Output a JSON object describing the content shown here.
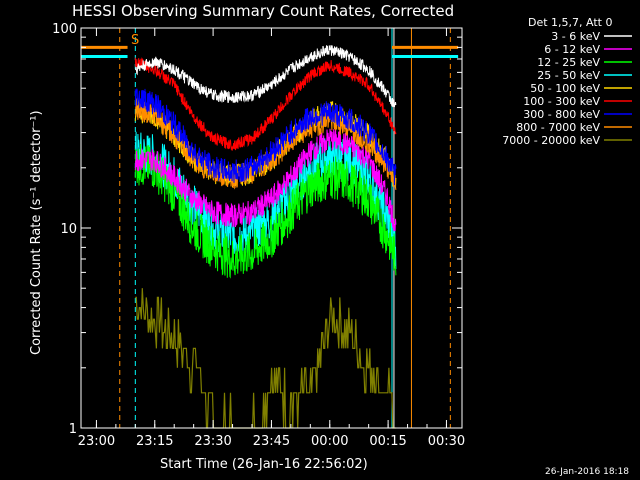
{
  "chart_data": {
    "type": "line",
    "title": "HESSI Observing Summary Count Rates, Corrected",
    "xlabel": "Start Time (26-Jan-16 22:56:02)",
    "ylabel": "Corrected Count Rate (s⁻¹ detector⁻¹)",
    "yscale": "log",
    "ylim": [
      1,
      100
    ],
    "xlim": [
      "22:56:02",
      "00:34:00"
    ],
    "x_ticks": [
      "23:00",
      "23:15",
      "23:30",
      "23:45",
      "00:00",
      "00:15",
      "00:30"
    ],
    "y_ticks": [
      "1",
      "10",
      "100"
    ],
    "legend_title": "Det 1,5,7, Att 0",
    "footer_date": "26-Jan-2016 18:18",
    "marker_label": "S",
    "series": [
      {
        "name": "3 - 6 keV",
        "color": "#ffffff",
        "x": [
          "23:10",
          "23:15",
          "23:20",
          "23:25",
          "23:30",
          "23:35",
          "23:40",
          "23:45",
          "23:50",
          "23:55",
          "00:00",
          "00:05",
          "00:10",
          "00:15",
          "00:17"
        ],
        "values": [
          62,
          68,
          62,
          52,
          46,
          45,
          46,
          52,
          62,
          72,
          78,
          72,
          62,
          46,
          40
        ]
      },
      {
        "name": "6 - 12 keV",
        "color": "#ff00ff",
        "x": [
          "23:10",
          "23:15",
          "23:20",
          "23:25",
          "23:30",
          "23:35",
          "23:40",
          "23:45",
          "23:50",
          "23:55",
          "00:00",
          "00:05",
          "00:10",
          "00:15",
          "00:17"
        ],
        "values": [
          22,
          22,
          18,
          14,
          12,
          11.5,
          12,
          14,
          18,
          24,
          28,
          26,
          22,
          14,
          10
        ]
      },
      {
        "name": "12 - 25 keV",
        "color": "#00ff00",
        "x": [
          "23:10",
          "23:15",
          "23:20",
          "23:25",
          "23:30",
          "23:35",
          "23:40",
          "23:45",
          "23:50",
          "23:55",
          "00:00",
          "00:05",
          "00:10",
          "00:15",
          "00:17"
        ],
        "values": [
          21,
          20,
          15,
          10,
          8,
          7,
          7.5,
          9,
          12,
          16,
          18,
          17,
          14,
          9,
          7
        ]
      },
      {
        "name": "25 - 50 keV",
        "color": "#00ffff",
        "x": [
          "23:10",
          "23:15",
          "23:20",
          "23:25",
          "23:30",
          "23:35",
          "23:40",
          "23:45",
          "23:50",
          "23:55",
          "00:00",
          "00:05",
          "00:10",
          "00:15",
          "00:17"
        ],
        "values": [
          24,
          23,
          18,
          13,
          10,
          9,
          9.5,
          11,
          15,
          20,
          23,
          22,
          18,
          11,
          8
        ]
      },
      {
        "name": "50 - 100 keV",
        "color": "#ffd700",
        "x": [
          "23:10",
          "23:15",
          "23:20",
          "23:25",
          "23:30",
          "23:35",
          "23:40",
          "23:45",
          "23:50",
          "23:55",
          "00:00",
          "00:05",
          "00:10",
          "00:15",
          "00:17"
        ],
        "values": [
          39,
          37,
          29,
          22,
          19,
          18,
          19,
          22,
          28,
          34,
          38,
          35,
          29,
          21,
          17
        ]
      },
      {
        "name": "100 - 300 keV",
        "color": "#ff0000",
        "x": [
          "23:10",
          "23:15",
          "23:20",
          "23:25",
          "23:30",
          "23:35",
          "23:40",
          "23:45",
          "23:50",
          "23:55",
          "00:00",
          "00:05",
          "00:10",
          "00:15",
          "00:17"
        ],
        "values": [
          68,
          62,
          52,
          36,
          28,
          26,
          28,
          35,
          46,
          58,
          65,
          60,
          52,
          36,
          30
        ]
      },
      {
        "name": "300 - 800 keV",
        "color": "#0000ff",
        "x": [
          "23:10",
          "23:15",
          "23:20",
          "23:25",
          "23:30",
          "23:35",
          "23:40",
          "23:45",
          "23:50",
          "23:55",
          "00:00",
          "00:05",
          "00:10",
          "00:15",
          "00:17"
        ],
        "values": [
          46,
          42,
          33,
          24,
          20,
          19,
          20,
          24,
          30,
          36,
          38,
          35,
          30,
          22,
          18
        ]
      },
      {
        "name": "800 - 7000 keV",
        "color": "#ff8c00",
        "x": [
          "23:10",
          "23:15",
          "23:20",
          "23:25",
          "23:30",
          "23:35",
          "23:40",
          "23:45",
          "23:50",
          "23:55",
          "00:00",
          "00:05",
          "00:10",
          "00:15",
          "00:17"
        ],
        "values": [
          40,
          37,
          29,
          22,
          19,
          18,
          19,
          22,
          27,
          32,
          35,
          32,
          27,
          20,
          16
        ]
      },
      {
        "name": "7000 - 20000 keV",
        "color": "#808000",
        "x": [
          "23:10",
          "23:12",
          "23:14",
          "23:16",
          "23:18",
          "23:20",
          "23:22",
          "23:24",
          "23:26",
          "23:30",
          "23:35",
          "23:40",
          "23:45",
          "23:50",
          "23:55",
          "23:58",
          "00:00",
          "00:02",
          "00:04",
          "00:06",
          "00:08",
          "00:10",
          "00:12",
          "00:14",
          "00:16",
          "00:17"
        ],
        "values": [
          4.5,
          4,
          3.5,
          3.5,
          3,
          3,
          2.5,
          2.2,
          2,
          1,
          1,
          1,
          1.8,
          1.3,
          1.5,
          2.5,
          3.5,
          3.5,
          3,
          3,
          2.2,
          2,
          1.8,
          1.5,
          1.3,
          1
        ]
      }
    ],
    "vertical_markers": [
      {
        "x": "23:06",
        "color": "#ff8c00",
        "style": "dashed"
      },
      {
        "x": "23:10",
        "color": "#00ffff",
        "style": "dashed"
      },
      {
        "x": "00:16",
        "color": "#00ffff",
        "style": "solid"
      },
      {
        "x": "00:16:30",
        "color": "#ffffff",
        "style": "solid"
      },
      {
        "x": "00:21",
        "color": "#ff8c00",
        "style": "solid"
      },
      {
        "x": "00:31",
        "color": "#ff8c00",
        "style": "dashed"
      }
    ],
    "flag_bars": [
      {
        "x0": "22:56:02",
        "x1": "23:08",
        "y": 80,
        "color": "#ff8c00"
      },
      {
        "x0": "22:56:02",
        "x1": "23:08",
        "y": 72,
        "color": "#00ffff"
      },
      {
        "x0": "00:16",
        "x1": "00:33",
        "y": 80,
        "color": "#ff8c00"
      },
      {
        "x0": "00:16",
        "x1": "00:33",
        "y": 72,
        "color": "#00ffff"
      }
    ]
  }
}
